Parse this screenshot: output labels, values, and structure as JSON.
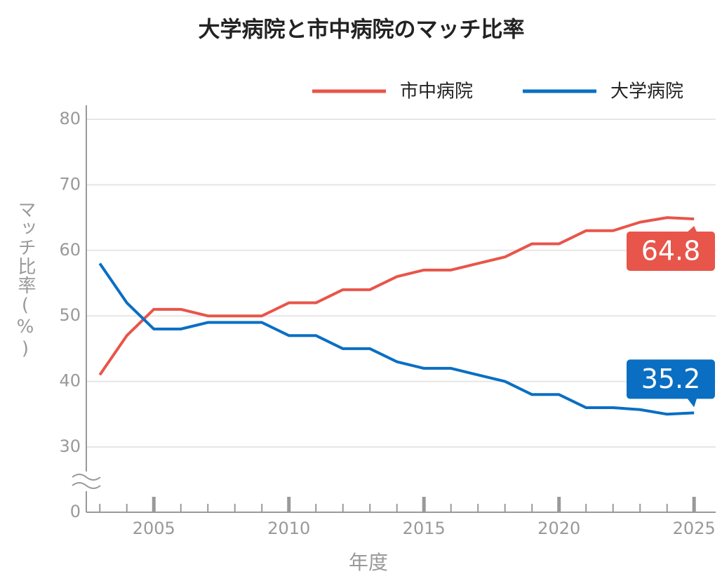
{
  "chart_data": {
    "type": "line",
    "title": "大学病院と市中病院のマッチ比率",
    "xlabel": "年度",
    "ylabel": "マッチ比率(%)",
    "x": [
      2003,
      2004,
      2005,
      2006,
      2007,
      2008,
      2009,
      2010,
      2011,
      2012,
      2013,
      2014,
      2015,
      2016,
      2017,
      2018,
      2019,
      2020,
      2021,
      2022,
      2023,
      2024,
      2025
    ],
    "series": [
      {
        "name": "市中病院",
        "color": "#e8554a",
        "values": [
          41,
          47,
          51,
          51,
          50,
          50,
          50,
          52,
          52,
          54,
          54,
          56,
          57,
          57,
          58,
          59,
          61,
          61,
          63,
          63,
          64.3,
          65.0,
          64.8
        ]
      },
      {
        "name": "大学病院",
        "color": "#0a6fc2",
        "values": [
          58,
          52,
          48,
          48,
          49,
          49,
          49,
          47,
          47,
          45,
          45,
          43,
          42,
          42,
          41,
          40,
          38,
          38,
          36,
          36,
          35.7,
          35.0,
          35.2
        ]
      }
    ],
    "xlim": [
      2002.5,
      2025.8
    ],
    "xticks": [
      2005,
      2010,
      2015,
      2020,
      2025
    ],
    "ylim": [
      30,
      80
    ],
    "yticks": [
      0,
      30,
      40,
      50,
      60,
      70,
      80
    ],
    "axis_break": true,
    "grid": true,
    "legend": "top-right"
  }
}
